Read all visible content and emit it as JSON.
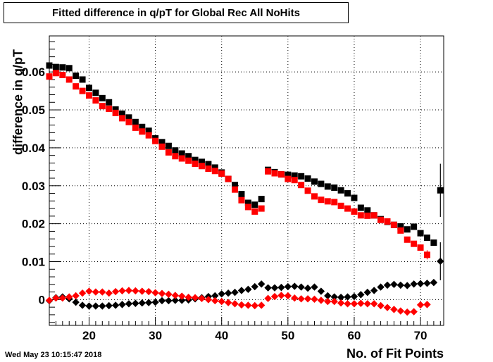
{
  "title": "Fitted difference in q/pT for Global Rec All NoHits",
  "timestamp": "Wed May 23 10:15:47 2018",
  "chart_data": {
    "type": "scatter",
    "title": "Fitted difference in q/pT for Global Rec All NoHits",
    "xlabel": "No. of Fit Points",
    "ylabel": "difference in q/pT",
    "xlim": [
      14,
      73.5
    ],
    "ylim": [
      -0.0068,
      0.0695
    ],
    "grid": true,
    "legend": "none",
    "x_ticks": [
      20,
      30,
      40,
      50,
      60,
      70
    ],
    "x_tick_labels": [
      "20",
      "30",
      "40",
      "50",
      "60",
      "70"
    ],
    "y_ticks": [
      0,
      0.01,
      0.02,
      0.03,
      0.04,
      0.05,
      0.06
    ],
    "y_tick_labels": [
      "0",
      "0.01",
      "0.02",
      "0.03",
      "0.04",
      "0.05",
      "0.06"
    ],
    "series": [
      {
        "marker": "square",
        "color": "#000000",
        "points": [
          [
            14,
            0.0617
          ],
          [
            15,
            0.0613
          ],
          [
            16,
            0.0612
          ],
          [
            17,
            0.061
          ],
          [
            18,
            0.059
          ],
          [
            19,
            0.058
          ],
          [
            20,
            0.0558
          ],
          [
            21,
            0.0545
          ],
          [
            22,
            0.0531
          ],
          [
            23,
            0.052
          ],
          [
            24,
            0.0501
          ],
          [
            25,
            0.049
          ],
          [
            26,
            0.048
          ],
          [
            27,
            0.0468
          ],
          [
            28,
            0.0455
          ],
          [
            29,
            0.0445
          ],
          [
            30,
            0.0425
          ],
          [
            31,
            0.0415
          ],
          [
            32,
            0.0405
          ],
          [
            33,
            0.0393
          ],
          [
            34,
            0.0385
          ],
          [
            35,
            0.0378
          ],
          [
            36,
            0.0368
          ],
          [
            37,
            0.0363
          ],
          [
            38,
            0.0357
          ],
          [
            39,
            0.0348
          ],
          [
            40,
            0.0335
          ],
          [
            41,
            0.0318
          ],
          [
            42,
            0.0302
          ],
          [
            43,
            0.0278
          ],
          [
            44,
            0.0255
          ],
          [
            45,
            0.025
          ],
          [
            46,
            0.0265
          ],
          [
            47,
            0.0342
          ],
          [
            48,
            0.0336
          ],
          [
            49,
            0.033
          ],
          [
            50,
            0.0329
          ],
          [
            51,
            0.0327
          ],
          [
            52,
            0.0325
          ],
          [
            53,
            0.0319
          ],
          [
            54,
            0.0311
          ],
          [
            55,
            0.0305
          ],
          [
            56,
            0.0298
          ],
          [
            57,
            0.0295
          ],
          [
            58,
            0.0288
          ],
          [
            59,
            0.028
          ],
          [
            60,
            0.0268
          ],
          [
            61,
            0.0242
          ],
          [
            62,
            0.0235
          ],
          [
            63,
            0.0222
          ],
          [
            64,
            0.0212
          ],
          [
            65,
            0.0205
          ],
          [
            66,
            0.0197
          ],
          [
            67,
            0.0193
          ],
          [
            68,
            0.0185
          ],
          [
            69,
            0.0192
          ],
          [
            70,
            0.0175
          ],
          [
            71,
            0.0163
          ],
          [
            72,
            0.015
          ],
          [
            73,
            0.0288
          ]
        ]
      },
      {
        "marker": "square",
        "color": "#ff0000",
        "points": [
          [
            14,
            0.0588
          ],
          [
            15,
            0.0597
          ],
          [
            16,
            0.0592
          ],
          [
            17,
            0.058
          ],
          [
            18,
            0.0562
          ],
          [
            19,
            0.055
          ],
          [
            20,
            0.0538
          ],
          [
            21,
            0.0525
          ],
          [
            22,
            0.051
          ],
          [
            23,
            0.0503
          ],
          [
            24,
            0.0492
          ],
          [
            25,
            0.0478
          ],
          [
            26,
            0.0468
          ],
          [
            27,
            0.0453
          ],
          [
            28,
            0.0443
          ],
          [
            29,
            0.0433
          ],
          [
            30,
            0.0418
          ],
          [
            31,
            0.0403
          ],
          [
            32,
            0.0388
          ],
          [
            33,
            0.0378
          ],
          [
            34,
            0.0372
          ],
          [
            35,
            0.0366
          ],
          [
            36,
            0.0358
          ],
          [
            37,
            0.0352
          ],
          [
            38,
            0.0345
          ],
          [
            39,
            0.0339
          ],
          [
            40,
            0.0332
          ],
          [
            41,
            0.0318
          ],
          [
            42,
            0.029
          ],
          [
            43,
            0.0262
          ],
          [
            44,
            0.0244
          ],
          [
            45,
            0.0232
          ],
          [
            46,
            0.024
          ],
          [
            47,
            0.0338
          ],
          [
            48,
            0.0333
          ],
          [
            49,
            0.033
          ],
          [
            50,
            0.0318
          ],
          [
            51,
            0.0315
          ],
          [
            52,
            0.0302
          ],
          [
            53,
            0.0287
          ],
          [
            54,
            0.0272
          ],
          [
            55,
            0.0263
          ],
          [
            56,
            0.0259
          ],
          [
            57,
            0.0257
          ],
          [
            58,
            0.0247
          ],
          [
            59,
            0.024
          ],
          [
            60,
            0.0232
          ],
          [
            61,
            0.0222
          ],
          [
            62,
            0.0221
          ],
          [
            63,
            0.0222
          ],
          [
            64,
            0.021
          ],
          [
            65,
            0.0206
          ],
          [
            66,
            0.0197
          ],
          [
            67,
            0.0182
          ],
          [
            68,
            0.0158
          ],
          [
            69,
            0.0147
          ],
          [
            70,
            0.0137
          ],
          [
            71,
            0.0118
          ]
        ]
      },
      {
        "marker": "diamond",
        "color": "#000000",
        "points": [
          [
            14,
            -0.0003
          ],
          [
            15,
            0.0005
          ],
          [
            16,
            0.0007
          ],
          [
            17,
            0.0002
          ],
          [
            18,
            -0.0007
          ],
          [
            19,
            -0.0015
          ],
          [
            20,
            -0.0017
          ],
          [
            21,
            -0.0017
          ],
          [
            22,
            -0.0017
          ],
          [
            23,
            -0.0016
          ],
          [
            24,
            -0.0015
          ],
          [
            25,
            -0.0013
          ],
          [
            26,
            -0.0011
          ],
          [
            27,
            -0.001
          ],
          [
            28,
            -0.0009
          ],
          [
            29,
            -0.0008
          ],
          [
            30,
            -0.0007
          ],
          [
            31,
            -0.0003
          ],
          [
            32,
            -0.0003
          ],
          [
            33,
            -0.0002
          ],
          [
            34,
            -0.0002
          ],
          [
            35,
            -0.0001
          ],
          [
            36,
            0.0002
          ],
          [
            37,
            0.0005
          ],
          [
            38,
            0.0008
          ],
          [
            39,
            0.001
          ],
          [
            40,
            0.0015
          ],
          [
            41,
            0.0017
          ],
          [
            42,
            0.0019
          ],
          [
            43,
            0.0024
          ],
          [
            44,
            0.0027
          ],
          [
            45,
            0.0034
          ],
          [
            46,
            0.0041
          ],
          [
            47,
            0.0031
          ],
          [
            48,
            0.0031
          ],
          [
            49,
            0.0032
          ],
          [
            50,
            0.0034
          ],
          [
            51,
            0.0035
          ],
          [
            52,
            0.0033
          ],
          [
            53,
            0.003
          ],
          [
            54,
            0.0033
          ],
          [
            55,
            0.0022
          ],
          [
            56,
            0.001
          ],
          [
            57,
            0.0007
          ],
          [
            58,
            0.0006
          ],
          [
            59,
            0.0007
          ],
          [
            60,
            0.0008
          ],
          [
            61,
            0.0013
          ],
          [
            62,
            0.0019
          ],
          [
            63,
            0.0024
          ],
          [
            64,
            0.0033
          ],
          [
            65,
            0.0038
          ],
          [
            66,
            0.004
          ],
          [
            67,
            0.0038
          ],
          [
            68,
            0.0037
          ],
          [
            69,
            0.0041
          ],
          [
            70,
            0.0042
          ],
          [
            71,
            0.0043
          ],
          [
            72,
            0.0045
          ],
          [
            73,
            0.0101
          ]
        ]
      },
      {
        "marker": "diamond",
        "color": "#ff0000",
        "points": [
          [
            14,
            -0.0002
          ],
          [
            15,
            0.0004
          ],
          [
            16,
            0.0004
          ],
          [
            17,
            0.0007
          ],
          [
            18,
            0.001
          ],
          [
            19,
            0.0017
          ],
          [
            20,
            0.0022
          ],
          [
            21,
            0.002
          ],
          [
            22,
            0.002
          ],
          [
            23,
            0.0017
          ],
          [
            24,
            0.0021
          ],
          [
            25,
            0.0023
          ],
          [
            26,
            0.0024
          ],
          [
            27,
            0.0023
          ],
          [
            28,
            0.0022
          ],
          [
            29,
            0.0021
          ],
          [
            30,
            0.0018
          ],
          [
            31,
            0.0016
          ],
          [
            32,
            0.0014
          ],
          [
            33,
            0.0011
          ],
          [
            34,
            0.0009
          ],
          [
            35,
            0.0006
          ],
          [
            36,
            0.0005
          ],
          [
            37,
            0.0003
          ],
          [
            38,
            0.0
          ],
          [
            39,
            -0.0003
          ],
          [
            40,
            -0.0005
          ],
          [
            41,
            -0.0008
          ],
          [
            42,
            -0.0011
          ],
          [
            43,
            -0.0014
          ],
          [
            44,
            -0.0015
          ],
          [
            45,
            -0.0016
          ],
          [
            46,
            -0.0015
          ],
          [
            47,
            0.0003
          ],
          [
            48,
            0.0008
          ],
          [
            49,
            0.0011
          ],
          [
            50,
            0.001
          ],
          [
            51,
            0.0004
          ],
          [
            52,
            0.0002
          ],
          [
            53,
            0.0002
          ],
          [
            54,
            0.0001
          ],
          [
            55,
            -0.0002
          ],
          [
            56,
            -0.0005
          ],
          [
            57,
            -0.0005
          ],
          [
            58,
            -0.0009
          ],
          [
            59,
            -0.0011
          ],
          [
            60,
            -0.0011
          ],
          [
            61,
            -0.001
          ],
          [
            62,
            -0.0011
          ],
          [
            63,
            -0.0011
          ],
          [
            64,
            -0.0016
          ],
          [
            65,
            -0.0021
          ],
          [
            66,
            -0.0026
          ],
          [
            67,
            -0.003
          ],
          [
            68,
            -0.0033
          ],
          [
            69,
            -0.0032
          ],
          [
            70,
            -0.0014
          ],
          [
            71,
            -0.0013
          ]
        ]
      }
    ],
    "error_bars": [
      {
        "series": 1,
        "x": 71,
        "y": 0.0118,
        "err": 0.0012
      },
      {
        "series": 0,
        "x": 73,
        "y": 0.0288,
        "err": 0.007
      },
      {
        "series": 2,
        "x": 73,
        "y": 0.0101,
        "err": 0.005
      }
    ]
  }
}
